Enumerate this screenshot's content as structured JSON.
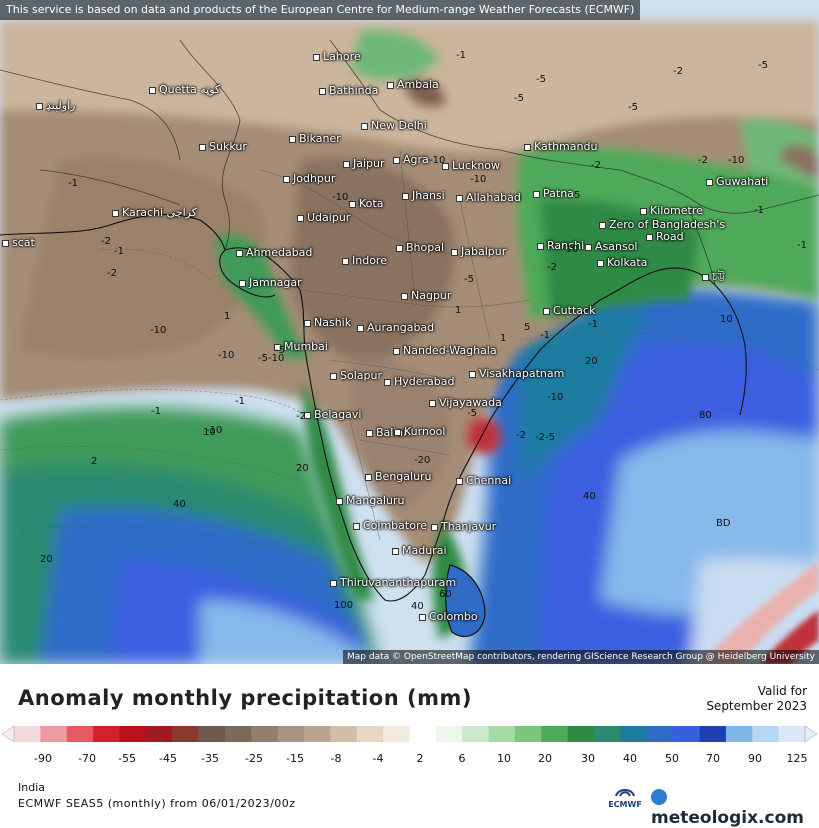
{
  "banner": "This service is based on data and products of the European Centre for Medium-range Weather Forecasts (ECMWF)",
  "attribution": "Map data © OpenStreetMap contributors, rendering GIScience Research Group @ Heidelberg University",
  "title": "Anomaly monthly precipitation (mm)",
  "valid_label": "Valid for",
  "valid_date": "September 2023",
  "region": "India",
  "model_run": "ECMWF SEAS5 (monthly) from 06/01/2023/00z",
  "brand": "meteologix.com",
  "ecmwf_logo_text": "ECMWF",
  "legend": {
    "ticks": [
      "-90",
      "-70",
      "-55",
      "-45",
      "-35",
      "-25",
      "-15",
      "-8",
      "-4",
      "2",
      "6",
      "10",
      "20",
      "30",
      "40",
      "50",
      "70",
      "90",
      "125"
    ],
    "colors": [
      "#f6d9dd",
      "#ee9aa2",
      "#e45a63",
      "#d4202c",
      "#b8101c",
      "#9e1a22",
      "#8a3a2c",
      "#6e5a4c",
      "#7d6a5c",
      "#92806c",
      "#a89380",
      "#bca58e",
      "#d2bea6",
      "#e6d6c2",
      "#f2ebe0",
      "#ffffff",
      "#eef7ee",
      "#cce8cc",
      "#a7d8a7",
      "#7cc57f",
      "#4fa95a",
      "#2f8a44",
      "#2a8a70",
      "#1e7ba0",
      "#2f6cc8",
      "#3a5ee0",
      "#1f3fb0",
      "#7fb6ea",
      "#b6d6f2",
      "#dbe9f7"
    ]
  },
  "cities": [
    {
      "name": "Lahore"
    },
    {
      "name": "Ambala"
    },
    {
      "name": "Bathinda"
    },
    {
      "name": "Quetta كوټه"
    },
    {
      "name": "راولپنډ"
    },
    {
      "name": "New Delhi"
    },
    {
      "name": "Bikaner"
    },
    {
      "name": "Sukkur"
    },
    {
      "name": "Kathmandu"
    },
    {
      "name": "Jaipur"
    },
    {
      "name": "Agra"
    },
    {
      "name": "Lucknow"
    },
    {
      "name": "Jodhpur"
    },
    {
      "name": "Jhansi"
    },
    {
      "name": "Allahabad"
    },
    {
      "name": "Patna"
    },
    {
      "name": "Guwahati"
    },
    {
      "name": "Karachi كراچى"
    },
    {
      "name": "Kota"
    },
    {
      "name": "Udaipur"
    },
    {
      "name": "Kilometre"
    },
    {
      "name": "Zero of Bangladesh's"
    },
    {
      "name": "Road"
    },
    {
      "name": "Ahmedabad"
    },
    {
      "name": "Bhopal"
    },
    {
      "name": "Jabalpur"
    },
    {
      "name": "Ranchi"
    },
    {
      "name": "Asansol"
    },
    {
      "name": "Indore"
    },
    {
      "name": "Kolkata"
    },
    {
      "name": "Jamnagar"
    },
    {
      "name": "Nagpur"
    },
    {
      "name": "Cuttack"
    },
    {
      "name": "Nashik"
    },
    {
      "name": "Aurangabad"
    },
    {
      "name": "Mumbai"
    },
    {
      "name": "Nanded-Waghala"
    },
    {
      "name": "Solapur"
    },
    {
      "name": "Hyderabad"
    },
    {
      "name": "Visakhapatnam"
    },
    {
      "name": "Belagavi"
    },
    {
      "name": "Vijayawada"
    },
    {
      "name": "Ballari"
    },
    {
      "name": "Kurnool"
    },
    {
      "name": "Bengaluru"
    },
    {
      "name": "Chennai"
    },
    {
      "name": "Mangaluru"
    },
    {
      "name": "Coimbatore"
    },
    {
      "name": "Thanjavur"
    },
    {
      "name": "Madurai"
    },
    {
      "name": "Thiruvananthapuram"
    },
    {
      "name": "Colombo"
    },
    {
      "name": "scat"
    },
    {
      "name": "চট্ট"
    }
  ],
  "contour_labels": [
    {
      "t": "-1"
    },
    {
      "t": "-5"
    },
    {
      "t": "-2"
    },
    {
      "t": "-5"
    },
    {
      "t": "-5"
    },
    {
      "t": "-2"
    },
    {
      "t": "-10"
    },
    {
      "t": "-5"
    },
    {
      "t": "-10"
    },
    {
      "t": "-10"
    },
    {
      "t": "-2"
    },
    {
      "t": "-10"
    },
    {
      "t": "-1"
    },
    {
      "t": "-2"
    },
    {
      "t": "-1"
    },
    {
      "t": "-2"
    },
    {
      "t": "-10"
    },
    {
      "t": "-10"
    },
    {
      "t": "-5"
    },
    {
      "t": "-1"
    },
    {
      "t": "-10"
    },
    {
      "t": "-5-10"
    },
    {
      "t": "-2"
    },
    {
      "t": "1"
    },
    {
      "t": "10"
    },
    {
      "t": "2"
    },
    {
      "t": "20"
    },
    {
      "t": "40"
    },
    {
      "t": "20"
    },
    {
      "t": "100"
    },
    {
      "t": "40"
    },
    {
      "t": "60"
    },
    {
      "t": "20"
    },
    {
      "t": "40"
    },
    {
      "t": "80"
    },
    {
      "t": "-10"
    },
    {
      "t": "-2-5"
    },
    {
      "t": "-20"
    },
    {
      "t": "-1"
    },
    {
      "t": "5"
    },
    {
      "t": "-10"
    },
    {
      "t": "-5"
    },
    {
      "t": "-1"
    },
    {
      "t": "-2"
    },
    {
      "t": "-1"
    },
    {
      "t": "-1"
    },
    {
      "t": "10"
    },
    {
      "t": "5"
    },
    {
      "t": "1"
    },
    {
      "t": "-5"
    },
    {
      "t": "BD"
    },
    {
      "t": "-1"
    },
    {
      "t": "1"
    },
    {
      "t": "-2"
    }
  ]
}
